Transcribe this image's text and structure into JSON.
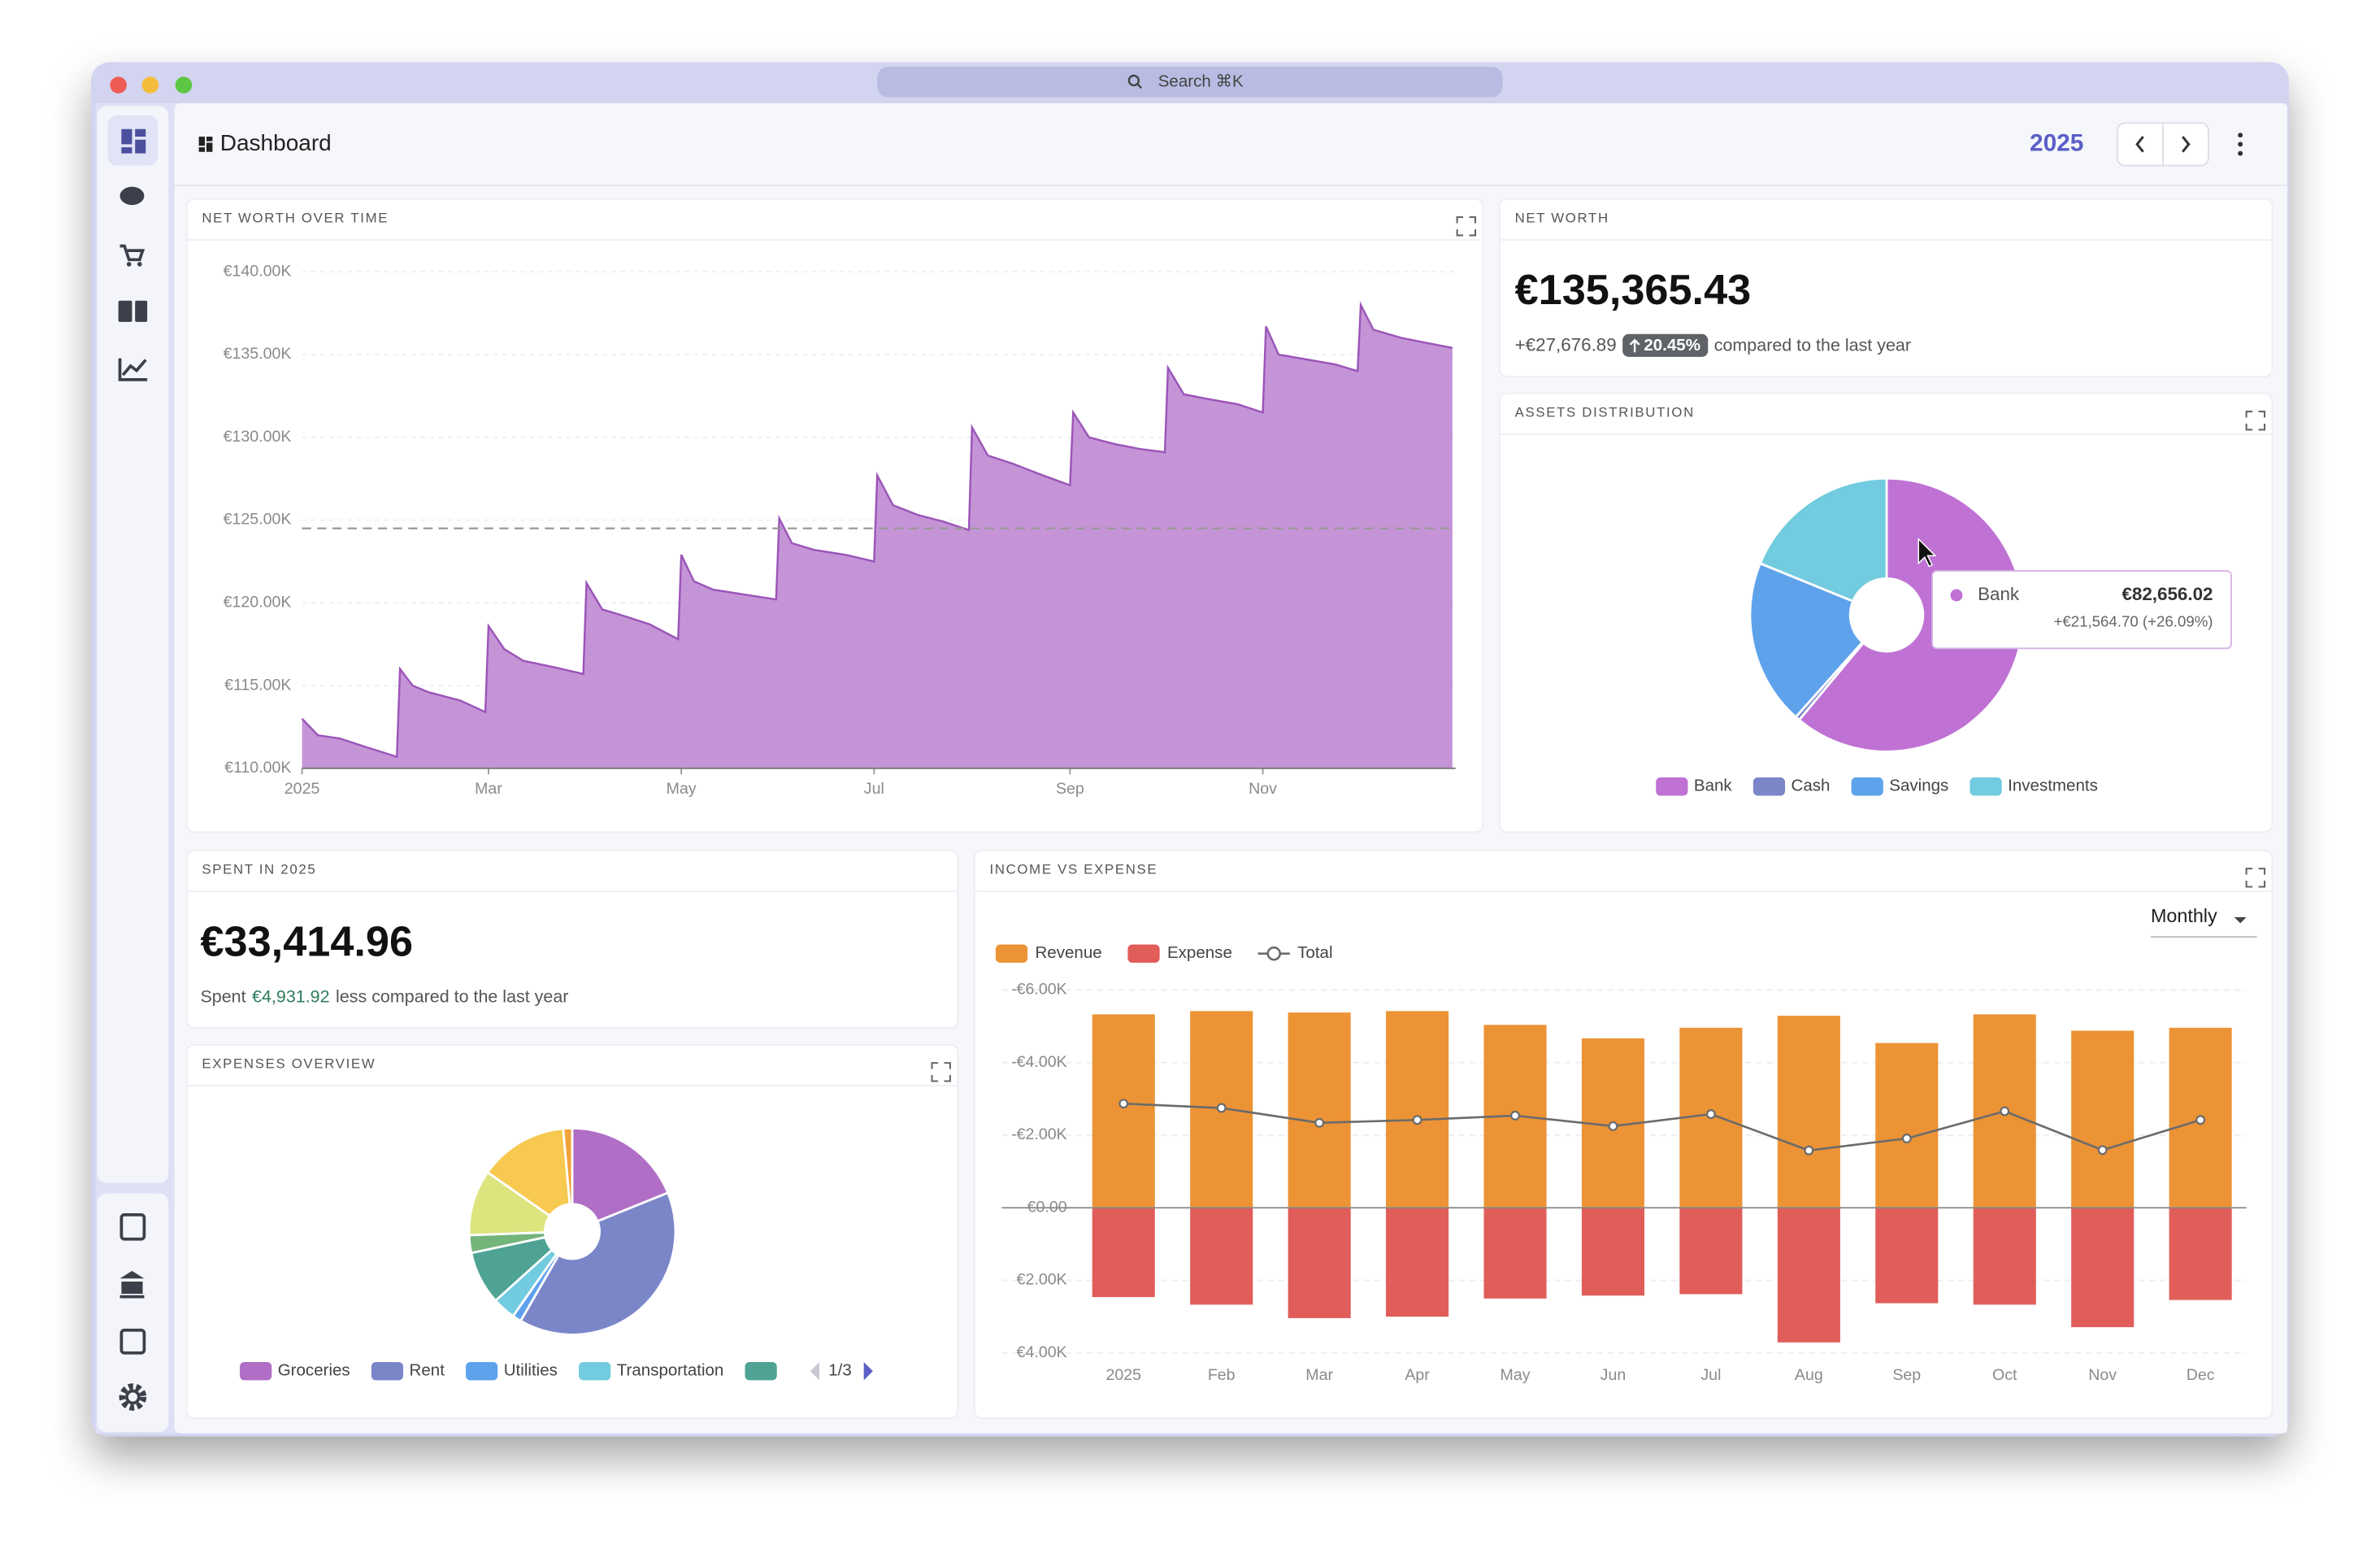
{
  "window": {
    "search": "Search ⌘K"
  },
  "header": {
    "title": "Dashboard",
    "year": "2025"
  },
  "cards": {
    "net_worth": {
      "title": "NET WORTH",
      "value": "€135,365.43",
      "change": "+€27,676.89",
      "badge": "20.45%",
      "note": "compared to the last year"
    },
    "spent": {
      "title": "SPENT IN 2025",
      "value": "€33,414.96",
      "prefix": "Spent",
      "amount": "€4,931.92",
      "note": "less compared to the last year"
    }
  },
  "chart_data": [
    {
      "type": "area",
      "title": "NET WORTH OVER TIME",
      "color": "#c594d7",
      "line_color": "#9b55b8",
      "grid": true,
      "x": [
        0,
        5,
        12,
        20,
        30,
        31,
        35,
        40,
        50,
        58,
        59,
        64,
        70,
        80,
        89,
        90,
        95,
        102,
        110,
        119,
        120,
        124,
        130,
        140,
        150,
        151,
        155,
        162,
        172,
        181,
        182,
        187,
        195,
        203,
        211,
        212,
        217,
        225,
        233,
        243,
        244,
        249,
        257,
        265,
        273,
        274,
        279,
        287,
        296,
        304,
        305,
        309,
        318,
        327,
        334,
        335,
        339,
        348,
        356,
        364
      ],
      "values": [
        113.0,
        112.0,
        111.8,
        111.3,
        110.7,
        116.0,
        115.0,
        114.6,
        114.1,
        113.4,
        118.6,
        117.2,
        116.5,
        116.1,
        115.7,
        121.2,
        119.6,
        119.2,
        118.7,
        117.8,
        122.9,
        121.3,
        120.8,
        120.5,
        120.2,
        125.1,
        123.6,
        123.2,
        122.9,
        122.5,
        127.7,
        125.9,
        125.3,
        124.9,
        124.4,
        130.6,
        128.9,
        128.4,
        127.8,
        127.1,
        131.5,
        130.0,
        129.6,
        129.3,
        129.1,
        134.2,
        132.6,
        132.3,
        132.0,
        131.5,
        136.7,
        135.0,
        134.7,
        134.4,
        134.0,
        138.0,
        136.5,
        136.0,
        135.7,
        135.4
      ],
      "reference_line": 124.5,
      "xlim": [
        0,
        365
      ],
      "xticks": [
        {
          "value": 0,
          "label": "2025"
        },
        {
          "value": 59,
          "label": "Mar"
        },
        {
          "value": 120,
          "label": "May"
        },
        {
          "value": 181,
          "label": "Jul"
        },
        {
          "value": 243,
          "label": "Sep"
        },
        {
          "value": 304,
          "label": "Nov"
        }
      ],
      "ylim": [
        110,
        140
      ],
      "yticks": [
        {
          "value": 110,
          "label": "€110.00K"
        },
        {
          "value": 115,
          "label": "€115.00K"
        },
        {
          "value": 120,
          "label": "€120.00K"
        },
        {
          "value": 125,
          "label": "€125.00K"
        },
        {
          "value": 130,
          "label": "€130.00K"
        },
        {
          "value": 135,
          "label": "€135.00K"
        },
        {
          "value": 140,
          "label": "€140.00K"
        }
      ]
    },
    {
      "type": "pie",
      "title": "ASSETS DISTRIBUTION",
      "categories": [
        "Bank",
        "Cash",
        "Savings",
        "Investments"
      ],
      "values": [
        82656.02,
        709.41,
        26500,
        25500
      ],
      "value_labels": [
        "€82,656.02",
        null,
        null,
        null
      ],
      "colors": [
        "#bf72d4",
        "#7b86c9",
        "#5ea2ec",
        "#72cbde"
      ],
      "tooltip": {
        "change": "+€21,564.70 (+26.09%)"
      }
    },
    {
      "type": "pie",
      "title": "EXPENSES OVERVIEW",
      "categories": [
        "Groceries",
        "Rent",
        "Utilities",
        "Transportation",
        null,
        null,
        null,
        null,
        null
      ],
      "values": [
        6310,
        13180,
        464,
        1206,
        2784,
        928,
        3434,
        4640,
        469
      ],
      "colors": [
        "#b06ec6",
        "#7b86c9",
        "#5ea2ec",
        "#72cbde",
        "#4fa394",
        "#73b57a",
        "#dde47e",
        "#f7c950",
        "#f0a23b"
      ],
      "legend_page": "1/3"
    },
    {
      "type": "bar",
      "title": "INCOME VS EXPENSE",
      "period": "Monthly",
      "y_inverted": true,
      "grid": true,
      "categories": [
        "2025",
        "Feb",
        "Mar",
        "Apr",
        "May",
        "Jun",
        "Jul",
        "Aug",
        "Sep",
        "Oct",
        "Nov",
        "Dec"
      ],
      "series": [
        {
          "name": "Revenue",
          "color": "#ec9335",
          "values": [
            -5.33,
            -5.42,
            -5.38,
            -5.42,
            -5.04,
            -4.67,
            -4.96,
            -5.29,
            -4.54,
            -5.33,
            -4.88,
            -4.96
          ]
        },
        {
          "name": "Expense",
          "color": "#e05d5a",
          "values": [
            2.46,
            2.67,
            3.04,
            3.0,
            2.5,
            2.42,
            2.38,
            3.71,
            2.63,
            2.67,
            3.29,
            2.54
          ]
        },
        {
          "name": "Total",
          "type": "line",
          "color": "#6b6b6b",
          "values": [
            -2.87,
            -2.75,
            -2.34,
            -2.42,
            -2.54,
            -2.25,
            -2.58,
            -1.58,
            -1.91,
            -2.66,
            -1.59,
            -2.42
          ]
        }
      ],
      "ylim": [
        -6,
        4
      ],
      "yticks": [
        {
          "value": -6,
          "label": "-€6.00K"
        },
        {
          "value": -4,
          "label": "-€4.00K"
        },
        {
          "value": -2,
          "label": "-€2.00K"
        },
        {
          "value": 0,
          "label": "€0.00"
        },
        {
          "value": 2,
          "label": "€2.00K"
        },
        {
          "value": 4,
          "label": "€4.00K"
        }
      ]
    }
  ]
}
